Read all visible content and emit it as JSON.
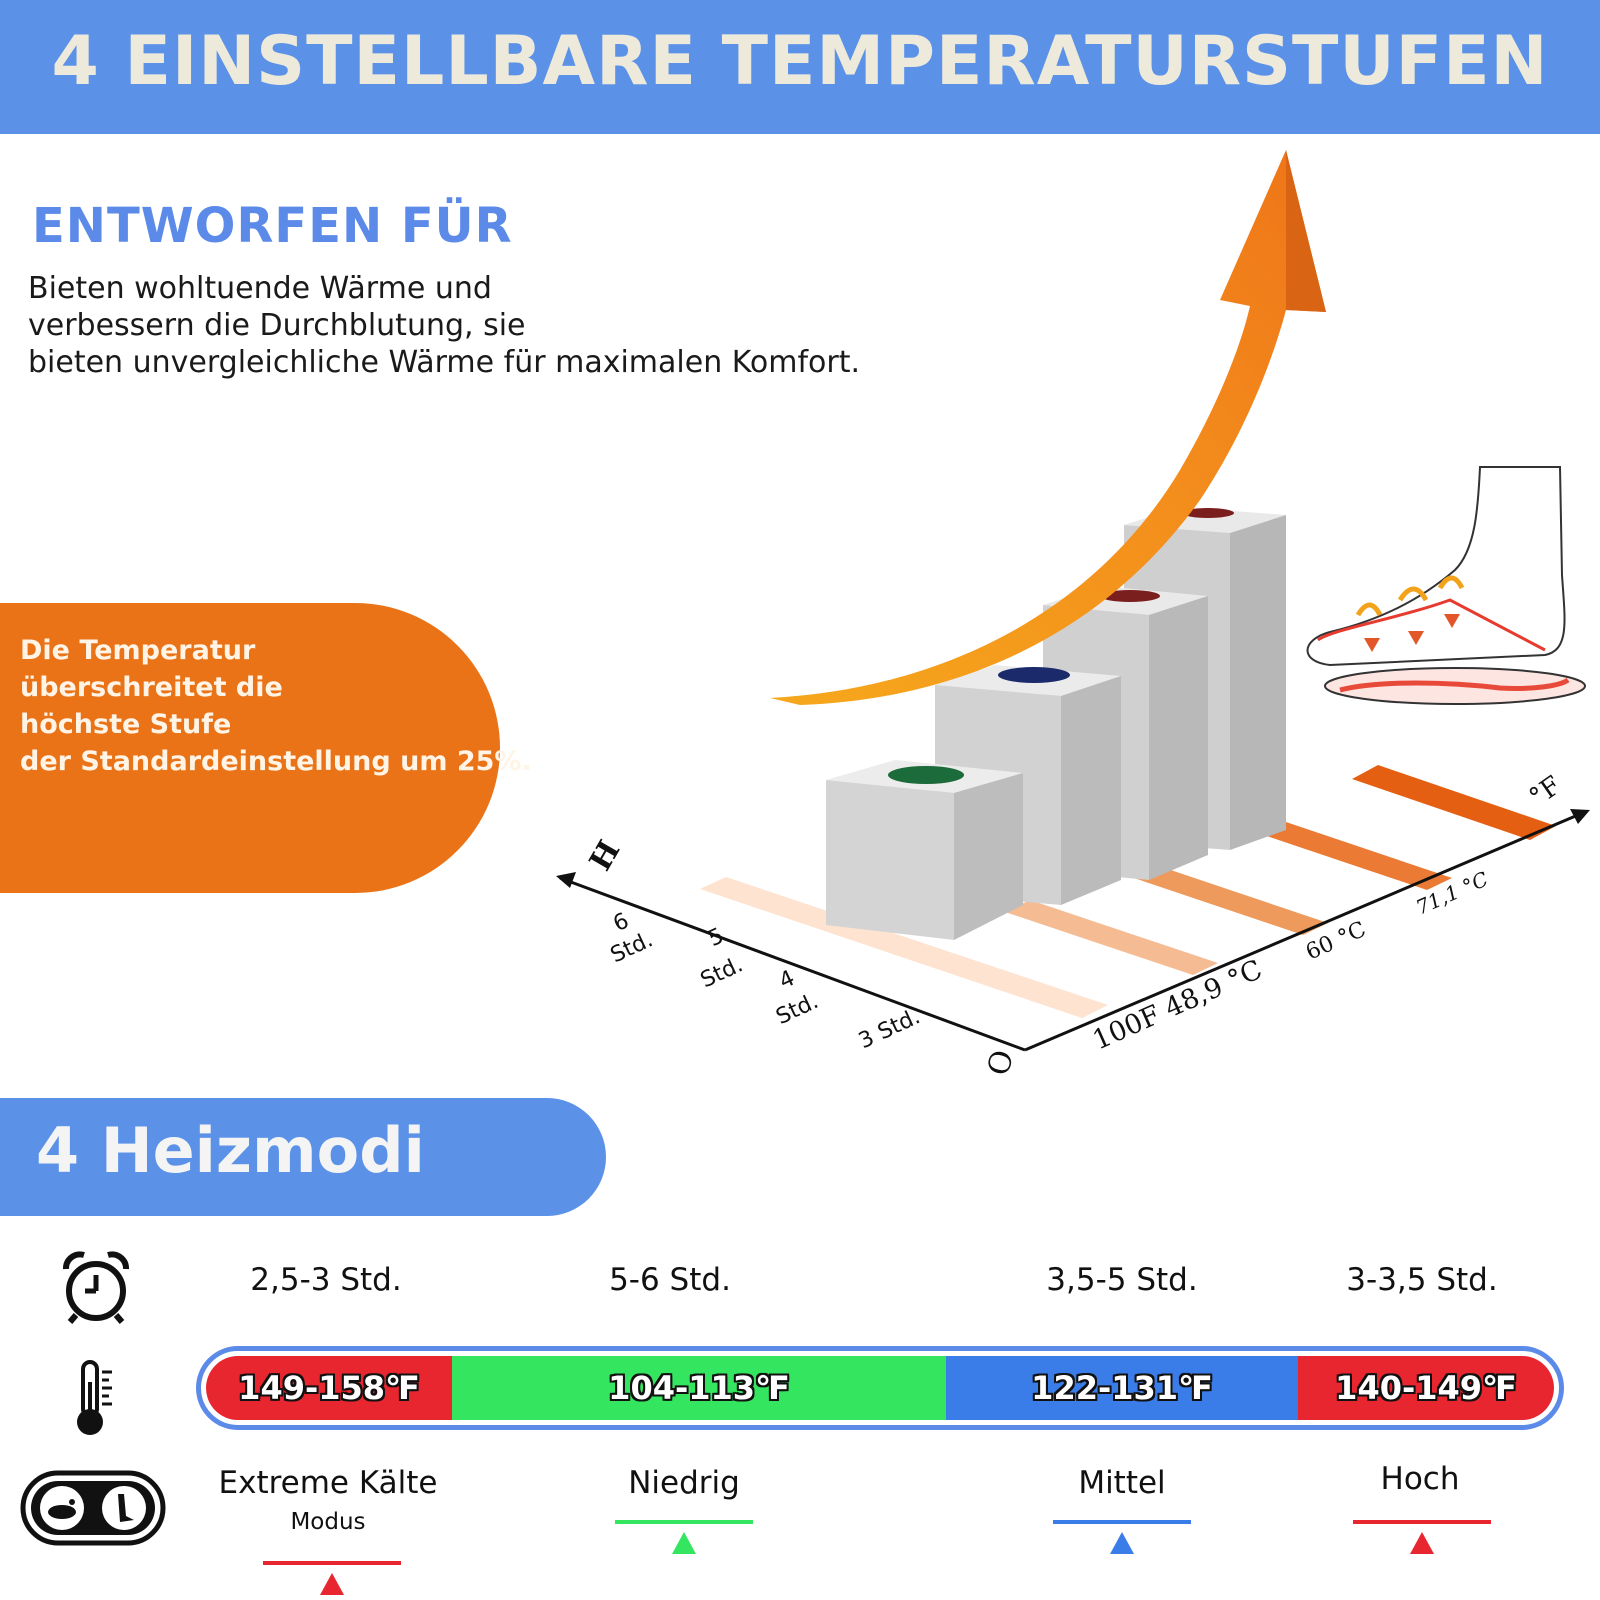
{
  "banner": {
    "title": "4 EINSTELLBARE TEMPERATURSTUFEN"
  },
  "intro": {
    "heading": "ENTWORFEN FÜR",
    "lines": [
      "Bieten wohltuende Wärme und",
      "verbessern die Durchblutung, sie",
      "bieten unvergleichliche Wärme für maximalen Komfort."
    ]
  },
  "callout": {
    "lines": [
      "Die Temperatur",
      "überschreitet die",
      "höchste Stufe",
      "der Standardeinstellung um 25%."
    ]
  },
  "chart": {
    "h_axis": {
      "label": "H",
      "origin": "O",
      "ticks": [
        [
          "6",
          "Std."
        ],
        [
          "5",
          "Std."
        ],
        [
          "4",
          "Std."
        ],
        [
          "3 Std."
        ]
      ]
    },
    "f_axis": {
      "label": "°F",
      "ticks": [
        "100F 48,9 °C",
        "60 °C",
        "71,1 °C"
      ]
    }
  },
  "modes": {
    "title": "4 Heizmodi",
    "icons": {
      "time": "alarm-clock-icon",
      "temperature": "thermometer-icon",
      "mode": "foot-toggle-icon"
    },
    "items": [
      {
        "duration": "2,5-3 Std.",
        "temp": "149-158℉",
        "name": "Extreme Kälte",
        "sub": "Modus",
        "color": "#e8262f"
      },
      {
        "duration": "5-6 Std.",
        "temp": "104-113℉",
        "name": "Niedrig",
        "color": "#33e55f"
      },
      {
        "duration": "3,5-5 Std.",
        "temp": "122-131℉",
        "name": "Mittel",
        "color": "#3a7ce8"
      },
      {
        "duration": "3-3,5 Std.",
        "temp": "140-149℉",
        "name": "Hoch",
        "color": "#e8262f"
      }
    ]
  },
  "colors": {
    "banner": "#5b92e8",
    "heading": "#5b8ae8",
    "callout": "#ea7317",
    "arrow": "#f08a1c"
  }
}
